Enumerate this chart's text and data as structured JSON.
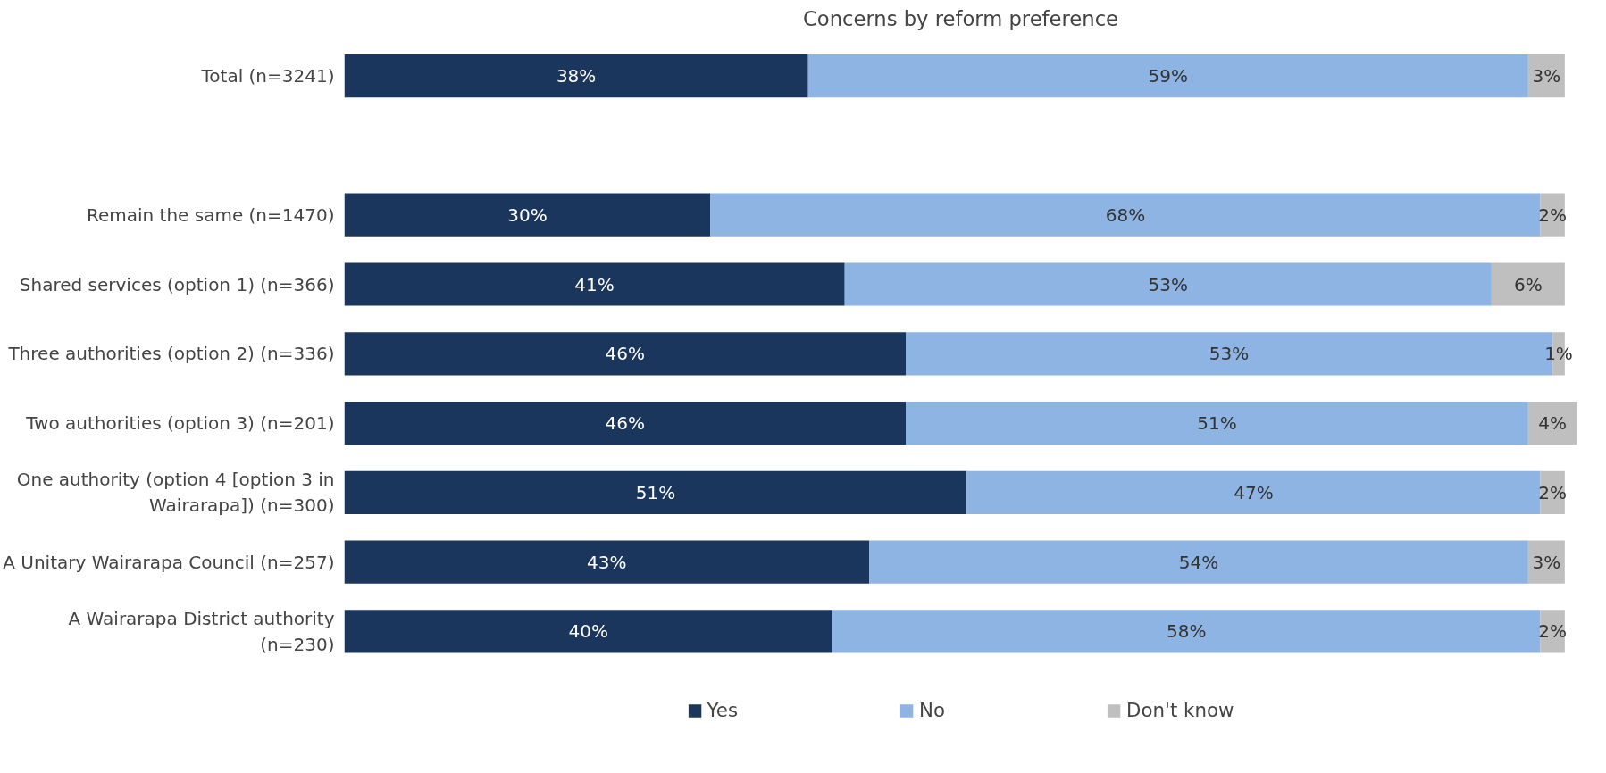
{
  "chart_data": {
    "type": "bar",
    "orientation": "horizontal",
    "stacked": true,
    "title": "Concerns by reform preference",
    "categories": [
      "Total (n=3241)",
      null,
      "Remain the same (n=1470)",
      "Shared services (option 1) (n=366)",
      "Three authorities (option 2) (n=336)",
      "Two authorities (option 3) (n=201)",
      "One authority (option 4 [option 3 in Wairarapa]) (n=300)",
      "A Unitary Wairarapa Council (n=257)",
      "A Wairarapa District authority (n=230)"
    ],
    "xlim": [
      0,
      101
    ],
    "tick_labels": false,
    "grid": false,
    "legend": "bottom",
    "series": [
      {
        "name": "Yes",
        "color": "#1b365d",
        "values": [
          38,
          null,
          30,
          41,
          46,
          46,
          51,
          43,
          40
        ],
        "value_labels": [
          "38%",
          null,
          "30%",
          "41%",
          "46%",
          "46%",
          "51%",
          "43%",
          "40%"
        ]
      },
      {
        "name": "No",
        "color": "#8eb4e3",
        "values": [
          59,
          null,
          68,
          53,
          53,
          51,
          47,
          54,
          58
        ],
        "value_labels": [
          "59%",
          null,
          "68%",
          "53%",
          "53%",
          "51%",
          "47%",
          "54%",
          "58%"
        ]
      },
      {
        "name": "Don't know",
        "color": "#bfbfbf",
        "values": [
          3,
          null,
          2,
          6,
          1,
          4,
          2,
          3,
          2
        ],
        "value_labels": [
          "3%",
          null,
          "2%",
          "6%",
          "1%",
          "4%",
          "2%",
          "3%",
          "2%"
        ]
      }
    ]
  }
}
